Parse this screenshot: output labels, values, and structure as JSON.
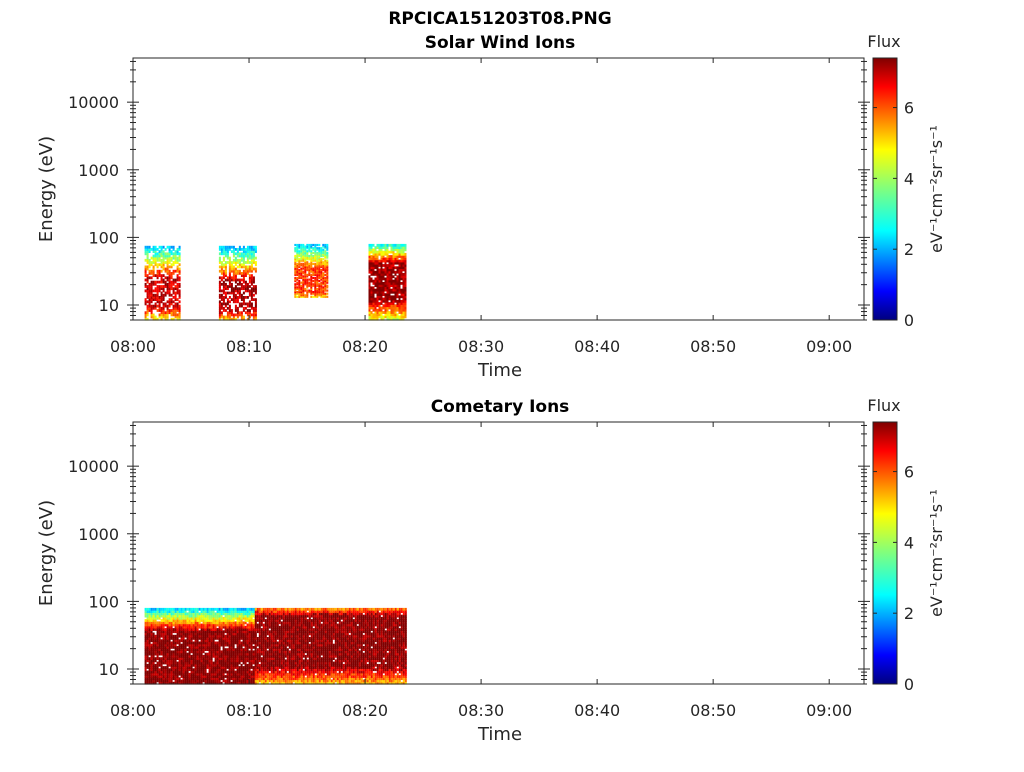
{
  "figure": {
    "title": "RPCICA151203T08.PNG"
  },
  "chart_data": [
    {
      "type": "heatmap",
      "title": "Solar Wind Ions",
      "xlabel": "Time",
      "ylabel": "Energy (eV)",
      "x_ticks": [
        "08:00",
        "08:10",
        "08:20",
        "08:30",
        "08:40",
        "08:50",
        "09:00"
      ],
      "x_range_minutes": [
        0,
        63
      ],
      "y_scale": "log",
      "y_ticks": [
        "10",
        "100",
        "1000",
        "10000"
      ],
      "y_range": [
        6,
        45000
      ],
      "colorbar": {
        "title": "Flux",
        "label": "eV⁻¹cm⁻²sr⁻¹s⁻¹",
        "ticks": [
          "0",
          "2",
          "4",
          "6"
        ],
        "range": [
          0,
          7.4
        ],
        "colormap": "jet"
      },
      "grid": false,
      "patches": [
        {
          "t0": 1.0,
          "t1": 4.1,
          "e_low": 6,
          "e_high": 75,
          "flux_min": 2.0,
          "flux_max": 6.8,
          "core_low": 9,
          "core_high": 25,
          "density": 0.7
        },
        {
          "t0": 7.4,
          "t1": 10.6,
          "e_low": 6,
          "e_high": 75,
          "flux_min": 2.0,
          "flux_max": 7.0,
          "core_low": 8,
          "core_high": 22,
          "density": 0.7
        },
        {
          "t0": 13.9,
          "t1": 16.8,
          "e_low": 13,
          "e_high": 80,
          "flux_min": 2.0,
          "flux_max": 6.0,
          "core_low": 15,
          "core_high": 35,
          "density": 0.85
        },
        {
          "t0": 20.3,
          "t1": 23.5,
          "e_low": 6,
          "e_high": 80,
          "flux_min": 2.5,
          "flux_max": 7.2,
          "core_low": 12,
          "core_high": 40,
          "density": 0.9
        }
      ]
    },
    {
      "type": "heatmap",
      "title": "Cometary Ions",
      "xlabel": "Time",
      "ylabel": "Energy (eV)",
      "x_ticks": [
        "08:00",
        "08:10",
        "08:20",
        "08:30",
        "08:40",
        "08:50",
        "09:00"
      ],
      "x_range_minutes": [
        0,
        63
      ],
      "y_scale": "log",
      "y_ticks": [
        "10",
        "100",
        "1000",
        "10000"
      ],
      "y_range": [
        6,
        45000
      ],
      "colorbar": {
        "title": "Flux",
        "label": "eV⁻¹cm⁻²sr⁻¹s⁻¹",
        "ticks": [
          "0",
          "2",
          "4",
          "6"
        ],
        "range": [
          0,
          7.4
        ],
        "colormap": "jet"
      },
      "grid": false,
      "patches": [
        {
          "t0": 1.0,
          "t1": 10.5,
          "e_low": 6,
          "e_high": 80,
          "flux_min": 2.0,
          "flux_max": 7.4,
          "core_low": 6,
          "core_high": 35,
          "density": 0.95
        },
        {
          "t0": 10.5,
          "t1": 23.5,
          "e_low": 6,
          "e_high": 80,
          "flux_min": 3.5,
          "flux_max": 7.4,
          "core_low": 11,
          "core_high": 60,
          "density": 0.97
        }
      ]
    }
  ]
}
